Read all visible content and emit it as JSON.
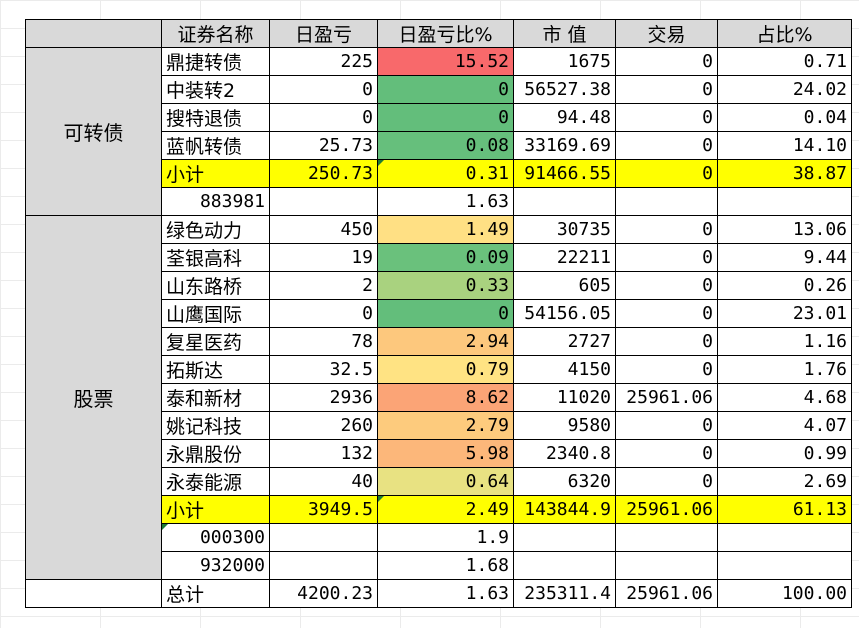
{
  "header": [
    "证券名称",
    "日盈亏",
    "日盈亏比%",
    "市  值",
    "交易",
    "占比%"
  ],
  "groups": {
    "convertible": {
      "label": "可转债",
      "rows": [
        {
          "name": "鼎捷转债",
          "pnl": "225",
          "pct": "15.52",
          "pct_color": "#f8696b",
          "mv": "1675",
          "trade": "0",
          "share": "0.71"
        },
        {
          "name": "中装转2",
          "pnl": "0",
          "pct": "0",
          "pct_color": "#63be7b",
          "mv": "56527.38",
          "trade": "0",
          "share": "24.02"
        },
        {
          "name": "搜特退债",
          "pnl": "0",
          "pct": "0",
          "pct_color": "#63be7b",
          "mv": "94.48",
          "trade": "0",
          "share": "0.04"
        },
        {
          "name": "蓝帆转债",
          "pnl": "25.73",
          "pct": "0.08",
          "pct_color": "#66bf7c",
          "mv": "33169.69",
          "trade": "0",
          "share": "14.10"
        }
      ],
      "subtotal": {
        "name": "小计",
        "pnl": "250.73",
        "pct": "0.31",
        "mv": "91466.55",
        "trade": "0",
        "share": "38.87"
      },
      "index_rows": [
        {
          "code": "883981",
          "pct": "1.63"
        }
      ]
    },
    "stocks": {
      "label": "股票",
      "rows": [
        {
          "name": "绿色动力",
          "pnl": "450",
          "pct": "1.49",
          "pct_color": "#ffe084",
          "mv": "30735",
          "trade": "0",
          "share": "13.06"
        },
        {
          "name": "荃银高科",
          "pnl": "19",
          "pct": "0.09",
          "pct_color": "#6ac17c",
          "mv": "22211",
          "trade": "0",
          "share": "9.44"
        },
        {
          "name": "山东路桥",
          "pnl": "2",
          "pct": "0.33",
          "pct_color": "#a9d27f",
          "mv": "605",
          "trade": "0",
          "share": "0.26"
        },
        {
          "name": "山鹰国际",
          "pnl": "0",
          "pct": "0",
          "pct_color": "#63be7b",
          "mv": "54156.05",
          "trade": "0",
          "share": "23.01"
        },
        {
          "name": "复星医药",
          "pnl": "78",
          "pct": "2.94",
          "pct_color": "#fdc87d",
          "mv": "2727",
          "trade": "0",
          "share": "1.16"
        },
        {
          "name": "拓斯达",
          "pnl": "32.5",
          "pct": "0.79",
          "pct_color": "#ffe383",
          "mv": "4150",
          "trade": "0",
          "share": "1.76"
        },
        {
          "name": "泰和新材",
          "pnl": "2936",
          "pct": "8.62",
          "pct_color": "#fba476",
          "mv": "11020",
          "trade": "25961.06",
          "share": "4.68"
        },
        {
          "name": "姚记科技",
          "pnl": "260",
          "pct": "2.79",
          "pct_color": "#fdcb7d",
          "mv": "9580",
          "trade": "0",
          "share": "4.07"
        },
        {
          "name": "永鼎股份",
          "pnl": "132",
          "pct": "5.98",
          "pct_color": "#fcb77a",
          "mv": "2340.8",
          "trade": "0",
          "share": "0.99"
        },
        {
          "name": "永泰能源",
          "pnl": "40",
          "pct": "0.64",
          "pct_color": "#e8e282",
          "mv": "6320",
          "trade": "0",
          "share": "2.69"
        }
      ],
      "subtotal": {
        "name": "小计",
        "pnl": "3949.5",
        "pct": "2.49",
        "mv": "143844.9",
        "trade": "25961.06",
        "share": "61.13"
      },
      "index_rows": [
        {
          "code": "000300",
          "pct": "1.9"
        },
        {
          "code": "932000",
          "pct": "1.68"
        }
      ]
    }
  },
  "total": {
    "name": "总计",
    "pnl": "4200.23",
    "pct": "1.63",
    "mv": "235311.4",
    "trade": "25961.06",
    "share": "100.00"
  }
}
